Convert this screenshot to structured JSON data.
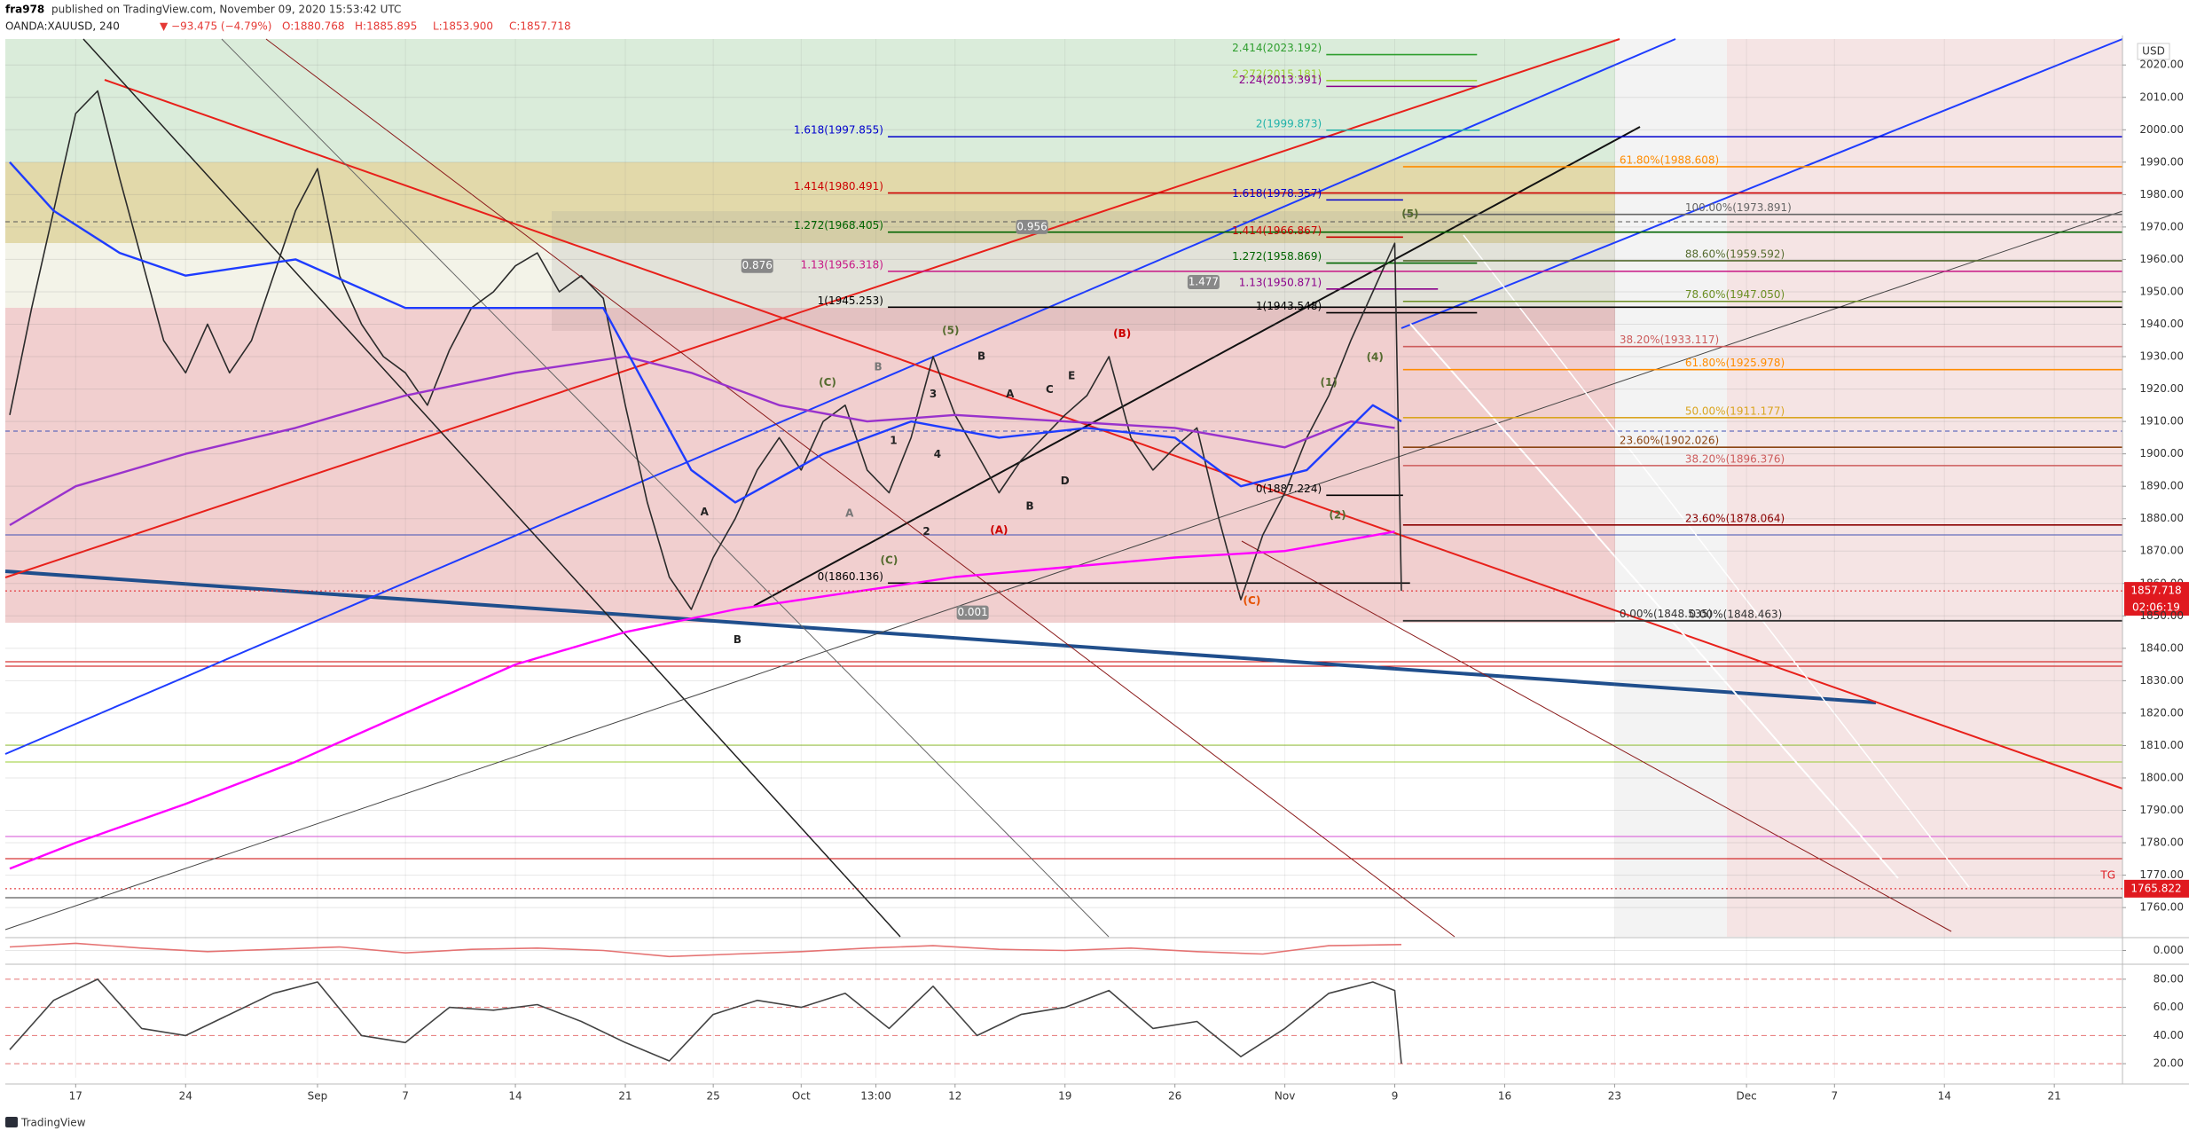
{
  "header": {
    "author": "fra978",
    "published": "published on TradingView.com, November 09, 2020 15:53:42 UTC",
    "symbol": "OANDA:XAUUSD, 240",
    "change": "▼ −93.475 (−4.79%)",
    "ohlc": [
      "O:1880.768",
      "H:1885.895",
      "L:1853.900",
      "C:1857.718"
    ]
  },
  "footer": {
    "brand": "TradingView"
  },
  "chart_data": [
    {
      "type": "line",
      "grid": true,
      "currency": "USD",
      "countdown": "02:06:19",
      "tag_note": "TG",
      "xlim": [
        -3.2,
        93.1
      ],
      "ylim": [
        1751,
        2028
      ],
      "xticks": [
        {
          "value": 0,
          "label": "17"
        },
        {
          "value": 5,
          "label": "24"
        },
        {
          "value": 11,
          "label": "Sep"
        },
        {
          "value": 15,
          "label": "7"
        },
        {
          "value": 20,
          "label": "14"
        },
        {
          "value": 25,
          "label": "21"
        },
        {
          "value": 29,
          "label": "25"
        },
        {
          "value": 33,
          "label": "Oct"
        },
        {
          "value": 36.4,
          "label": "13:00"
        },
        {
          "value": 40,
          "label": "12"
        },
        {
          "value": 45,
          "label": "19"
        },
        {
          "value": 50,
          "label": "26"
        },
        {
          "value": 55,
          "label": "Nov"
        },
        {
          "value": 60,
          "label": "9"
        },
        {
          "value": 65,
          "label": "16"
        },
        {
          "value": 70,
          "label": "23"
        },
        {
          "value": 76,
          "label": "Dec"
        },
        {
          "value": 80,
          "label": "7"
        },
        {
          "value": 85,
          "label": "14"
        },
        {
          "value": 90,
          "label": "21"
        }
      ],
      "yticks": [
        {
          "value": 1760,
          "label": "1760.00"
        },
        {
          "value": 1770,
          "label": "1770.00"
        },
        {
          "value": 1780,
          "label": "1780.00"
        },
        {
          "value": 1790,
          "label": "1790.00"
        },
        {
          "value": 1800,
          "label": "1800.00"
        },
        {
          "value": 1810,
          "label": "1810.00"
        },
        {
          "value": 1820,
          "label": "1820.00"
        },
        {
          "value": 1830,
          "label": "1830.00"
        },
        {
          "value": 1840,
          "label": "1840.00"
        },
        {
          "value": 1850,
          "label": "1850.00"
        },
        {
          "value": 1860,
          "label": "1860.00"
        },
        {
          "value": 1870,
          "label": "1870.00"
        },
        {
          "value": 1880,
          "label": "1880.00"
        },
        {
          "value": 1890,
          "label": "1890.00"
        },
        {
          "value": 1900,
          "label": "1900.00"
        },
        {
          "value": 1910,
          "label": "1910.00"
        },
        {
          "value": 1920,
          "label": "1920.00"
        },
        {
          "value": 1930,
          "label": "1930.00"
        },
        {
          "value": 1940,
          "label": "1940.00"
        },
        {
          "value": 1950,
          "label": "1950.00"
        },
        {
          "value": 1960,
          "label": "1960.00"
        },
        {
          "value": 1970,
          "label": "1970.00"
        },
        {
          "value": 1980,
          "label": "1980.00"
        },
        {
          "value": 1990,
          "label": "1990.00"
        },
        {
          "value": 2000,
          "label": "2000.00"
        },
        {
          "value": 2010,
          "label": "2010.00"
        },
        {
          "value": 2020,
          "label": "2020.00"
        }
      ],
      "series": [
        {
          "color": "#2b2b2b",
          "x": [
            -3,
            -2,
            -1,
            0,
            1,
            2,
            3,
            4,
            5,
            6,
            7,
            8,
            9,
            10,
            11,
            12,
            13,
            14,
            15,
            16,
            17,
            18,
            19,
            20,
            21,
            22,
            23,
            24,
            25,
            26,
            27,
            28,
            29,
            30,
            31,
            32,
            33,
            34,
            35,
            36,
            37,
            38,
            39,
            40,
            41,
            42,
            43,
            44,
            45,
            46,
            47,
            48,
            49,
            50,
            51,
            52,
            53,
            54,
            55,
            56,
            57,
            58,
            59,
            60,
            60.3
          ],
          "values": [
            1912,
            1945,
            1975,
            2005,
            2012,
            1985,
            1960,
            1935,
            1925,
            1940,
            1925,
            1935,
            1955,
            1975,
            1988,
            1955,
            1940,
            1930,
            1925,
            1915,
            1932,
            1945,
            1950,
            1958,
            1962,
            1950,
            1955,
            1948,
            1915,
            1885,
            1862,
            1852,
            1868,
            1880,
            1895,
            1905,
            1895,
            1910,
            1915,
            1895,
            1888,
            1905,
            1930,
            1912,
            1900,
            1888,
            1898,
            1905,
            1912,
            1918,
            1930,
            1905,
            1895,
            1902,
            1908,
            1880,
            1855,
            1875,
            1888,
            1905,
            1918,
            1935,
            1950,
            1965,
            1857.718
          ]
        },
        {
          "color": "#9932cc",
          "x": [
            -3,
            0,
            5,
            10,
            15,
            20,
            25,
            28,
            32,
            36,
            40,
            45,
            50,
            55,
            58,
            60
          ],
          "values": [
            1878,
            1890,
            1900,
            1908,
            1918,
            1925,
            1930,
            1925,
            1915,
            1910,
            1912,
            1910,
            1908,
            1902,
            1910,
            1908
          ]
        },
        {
          "color": "#ff00ff",
          "x": [
            -3,
            0,
            5,
            10,
            15,
            20,
            25,
            30,
            35,
            40,
            45,
            50,
            55,
            60
          ],
          "values": [
            1772,
            1780,
            1792,
            1805,
            1820,
            1835,
            1845,
            1852,
            1857,
            1862,
            1865,
            1868,
            1870,
            1876
          ]
        },
        {
          "color": "#1e3cff",
          "x": [
            -3,
            -1,
            2,
            5,
            10,
            15,
            20,
            24,
            26,
            28,
            30,
            34,
            38,
            42,
            46,
            50,
            53,
            56,
            59,
            60.3
          ],
          "values": [
            1990,
            1975,
            1962,
            1955,
            1960,
            1945,
            1945,
            1945,
            1920,
            1895,
            1885,
            1900,
            1910,
            1905,
            1908,
            1905,
            1890,
            1895,
            1915,
            1910
          ]
        }
      ],
      "fib_levels": [
        {
          "value": 2023.192,
          "label": "2.414(2023.192)",
          "color": "#2e9e2e"
        },
        {
          "value": 2015.181,
          "label": "2.272(2015.181)",
          "color": "#9acd32"
        },
        {
          "value": 2013.391,
          "label": "2.24(2013.391)",
          "color": "#8b008b"
        },
        {
          "value": 1999.873,
          "label": "2(1999.873)",
          "color": "#20b2aa"
        },
        {
          "value": 1997.855,
          "label": "1.618(1997.855)",
          "color": "#0000cd"
        },
        {
          "value": 1980.491,
          "label": "1.414(1980.491)",
          "color": "#cc0000"
        },
        {
          "value": 1978.357,
          "label": "1.618(1978.357)",
          "color": "#0000cd"
        },
        {
          "value": 1968.405,
          "label": "1.272(1968.405)",
          "color": "#006400"
        },
        {
          "value": 1966.867,
          "label": "1.414(1966.867)",
          "color": "#cc0000"
        },
        {
          "value": 1958.869,
          "label": "1.272(1958.869)",
          "color": "#006400"
        },
        {
          "value": 1956.318,
          "label": "1.13(1956.318)",
          "color": "#c71585"
        },
        {
          "value": 1950.871,
          "label": "1.13(1950.871)",
          "color": "#8b008b"
        },
        {
          "value": 1945.253,
          "label": "1(1945.253)",
          "color": "#000000"
        },
        {
          "value": 1943.548,
          "label": "1(1943.548)",
          "color": "#000000"
        },
        {
          "value": 1887.224,
          "label": "0(1887.224)",
          "color": "#000000"
        },
        {
          "value": 1860.136,
          "label": "0(1860.136)",
          "color": "#000000"
        },
        {
          "value": 1973.891,
          "label": "100.00%(1973.891)",
          "color": "#666666"
        },
        {
          "value": 1959.592,
          "label": "88.60%(1959.592)",
          "color": "#556b2f"
        },
        {
          "value": 1947.05,
          "label": "78.60%(1947.050)",
          "color": "#6b8e23"
        },
        {
          "value": 1988.608,
          "label": "61.80%(1988.608)",
          "color": "#ff8c00"
        },
        {
          "value": 1925.978,
          "label": "61.80%(1925.978)",
          "color": "#ff8c00"
        },
        {
          "value": 1911.177,
          "label": "50.00%(1911.177)",
          "color": "#daa520"
        },
        {
          "value": 1933.117,
          "label": "38.20%(1933.117)",
          "color": "#cd5c5c"
        },
        {
          "value": 1896.376,
          "label": "38.20%(1896.376)",
          "color": "#cd5c5c"
        },
        {
          "value": 1902.026,
          "label": "23.60%(1902.026)",
          "color": "#8b4513"
        },
        {
          "value": 1878.064,
          "label": "23.60%(1878.064)",
          "color": "#8b0000"
        },
        {
          "value": 1848.535,
          "label": "0.00%(1848.535)",
          "color": "#333333"
        },
        {
          "value": 1848.463,
          "label": "0.00%(1848.463)",
          "color": "#333333"
        }
      ],
      "price_tags": [
        {
          "value": 1857.718,
          "label": "1857.718",
          "color": "#e0191f"
        },
        {
          "value": 1765.822,
          "label": "1765.822",
          "color": "#e0191f"
        }
      ],
      "annotations": [
        {
          "text": "A",
          "x": 28.6,
          "y": 1882,
          "color": "#222222"
        },
        {
          "text": "B",
          "x": 30.1,
          "y": 1842.5,
          "color": "#222222"
        },
        {
          "text": "(C)",
          "x": 34.2,
          "y": 1922,
          "color": "#556b2f"
        },
        {
          "text": "A",
          "x": 35.2,
          "y": 1881.5,
          "color": "#777777"
        },
        {
          "text": "B",
          "x": 36.5,
          "y": 1926.7,
          "color": "#777777"
        },
        {
          "text": "(C)",
          "x": 37,
          "y": 1867,
          "color": "#556b2f"
        },
        {
          "text": "1",
          "x": 37.2,
          "y": 1904,
          "color": "#222222"
        },
        {
          "text": "2",
          "x": 38.7,
          "y": 1876,
          "color": "#222222"
        },
        {
          "text": "3",
          "x": 39,
          "y": 1918.4,
          "color": "#222222"
        },
        {
          "text": "4",
          "x": 39.2,
          "y": 1899.8,
          "color": "#222222"
        },
        {
          "text": "(5)",
          "x": 39.8,
          "y": 1938,
          "color": "#556b2f"
        },
        {
          "text": "B",
          "x": 41.2,
          "y": 1930,
          "color": "#222222"
        },
        {
          "text": "(A)",
          "x": 42,
          "y": 1876.3,
          "color": "#cc0000"
        },
        {
          "text": "A",
          "x": 42.5,
          "y": 1918.4,
          "color": "#222222"
        },
        {
          "text": "B",
          "x": 43.4,
          "y": 1883.7,
          "color": "#222222"
        },
        {
          "text": "C",
          "x": 44.3,
          "y": 1919.7,
          "color": "#222222"
        },
        {
          "text": "D",
          "x": 45,
          "y": 1891.5,
          "color": "#222222"
        },
        {
          "text": "E",
          "x": 45.3,
          "y": 1924,
          "color": "#222222"
        },
        {
          "text": "(B)",
          "x": 47.6,
          "y": 1937,
          "color": "#cc0000"
        },
        {
          "text": "(C)",
          "x": 53.5,
          "y": 1854.6,
          "color": "#e65100"
        },
        {
          "text": "(1)",
          "x": 57,
          "y": 1922,
          "color": "#556b2f"
        },
        {
          "text": "(2)",
          "x": 57.4,
          "y": 1881,
          "color": "#556b2f"
        },
        {
          "text": "(4)",
          "x": 59.1,
          "y": 1929.7,
          "color": "#556b2f"
        },
        {
          "text": "(5)",
          "x": 60.7,
          "y": 1974,
          "color": "#556b2f"
        },
        {
          "text": "0.876",
          "x": 31,
          "y": 1958,
          "color": "#888888",
          "style": "box"
        },
        {
          "text": "0.956",
          "x": 43.5,
          "y": 1970,
          "color": "#888888",
          "style": "box"
        },
        {
          "text": "1.477",
          "x": 51.3,
          "y": 1953,
          "color": "#888888",
          "style": "box"
        },
        {
          "text": "0.001",
          "x": 40.8,
          "y": 1851,
          "color": "#888888",
          "style": "box"
        }
      ]
    },
    {
      "type": "line",
      "grid": true,
      "xlim": [
        -3.2,
        93.1
      ],
      "ylim": [
        -1,
        1
      ],
      "yticks": [
        {
          "value": 0,
          "label": "0.000"
        }
      ],
      "series": [
        {
          "color": "#e57373",
          "x": [
            -3,
            0,
            3,
            6,
            9,
            12,
            15,
            18,
            21,
            24,
            27,
            30,
            33,
            36,
            39,
            42,
            45,
            48,
            51,
            54,
            57,
            60.3
          ],
          "values": [
            0.3,
            0.6,
            0.2,
            -0.1,
            0.1,
            0.3,
            -0.2,
            0.1,
            0.2,
            0.0,
            -0.5,
            -0.3,
            -0.1,
            0.2,
            0.4,
            0.1,
            0.0,
            0.2,
            -0.1,
            -0.3,
            0.4,
            0.5
          ]
        }
      ]
    },
    {
      "type": "line",
      "grid": true,
      "xlim": [
        -3.2,
        93.1
      ],
      "ylim": [
        10,
        90
      ],
      "yticks": [
        {
          "value": 20,
          "label": "20.00"
        },
        {
          "value": 40,
          "label": "40.00"
        },
        {
          "value": 60,
          "label": "60.00"
        },
        {
          "value": 80,
          "label": "80.00"
        }
      ],
      "series": [
        {
          "color": "#444444",
          "x": [
            -3,
            -1,
            1,
            3,
            5,
            7,
            9,
            11,
            13,
            15,
            17,
            19,
            21,
            23,
            25,
            27,
            29,
            31,
            33,
            35,
            37,
            39,
            41,
            43,
            45,
            47,
            49,
            51,
            53,
            55,
            57,
            59,
            60,
            60.3
          ],
          "values": [
            30,
            65,
            80,
            45,
            40,
            55,
            70,
            78,
            40,
            35,
            60,
            58,
            62,
            50,
            35,
            22,
            55,
            65,
            60,
            70,
            45,
            75,
            40,
            55,
            60,
            72,
            45,
            50,
            25,
            45,
            70,
            78,
            72,
            20
          ]
        }
      ]
    }
  ]
}
